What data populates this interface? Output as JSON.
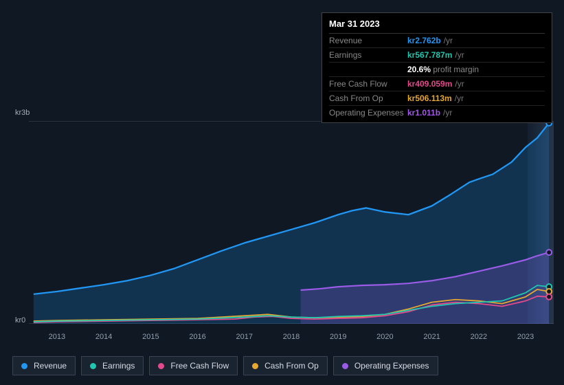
{
  "background_color": "#0f1823",
  "tooltip": {
    "title": "Mar 31 2023",
    "rows": [
      {
        "label": "Revenue",
        "value": "kr2.762b",
        "suffix": "/yr",
        "color": "#2196f3"
      },
      {
        "label": "Earnings",
        "value": "kr567.787m",
        "suffix": "/yr",
        "color": "#1fc7b0"
      },
      {
        "label": "Free Cash Flow",
        "value": "kr409.059m",
        "suffix": "/yr",
        "color": "#e24a8b"
      },
      {
        "label": "Cash From Op",
        "value": "kr506.113m",
        "suffix": "/yr",
        "color": "#e7a831"
      },
      {
        "label": "Operating Expenses",
        "value": "kr1.011b",
        "suffix": "/yr",
        "color": "#a258e8"
      }
    ],
    "sub_after_index": 1,
    "sub_value": "20.6%",
    "sub_label": "profit margin"
  },
  "y_axis": {
    "top_label": "kr3b",
    "bottom_label": "kr0",
    "min": 0,
    "max": 3.0
  },
  "x_axis": {
    "years": [
      2013,
      2014,
      2015,
      2016,
      2017,
      2018,
      2019,
      2020,
      2021,
      2022,
      2023
    ],
    "min": 2012.4,
    "max": 2023.6
  },
  "highlight_from_year": 2023.05,
  "chart_top_line_color": "#2a3340",
  "grid_color": "#1c2530",
  "series": [
    {
      "name": "Revenue",
      "color": "#2196f3",
      "stroke_width": 2.3,
      "fill_opacity": 0.22,
      "points": [
        [
          2012.5,
          0.44
        ],
        [
          2013,
          0.48
        ],
        [
          2013.5,
          0.53
        ],
        [
          2014,
          0.58
        ],
        [
          2014.5,
          0.64
        ],
        [
          2015,
          0.72
        ],
        [
          2015.5,
          0.82
        ],
        [
          2016,
          0.95
        ],
        [
          2016.5,
          1.08
        ],
        [
          2017,
          1.2
        ],
        [
          2017.5,
          1.3
        ],
        [
          2018,
          1.4
        ],
        [
          2018.5,
          1.5
        ],
        [
          2019,
          1.62
        ],
        [
          2019.3,
          1.68
        ],
        [
          2019.6,
          1.72
        ],
        [
          2020,
          1.66
        ],
        [
          2020.5,
          1.62
        ],
        [
          2021,
          1.75
        ],
        [
          2021.4,
          1.92
        ],
        [
          2021.8,
          2.1
        ],
        [
          2022,
          2.15
        ],
        [
          2022.3,
          2.22
        ],
        [
          2022.7,
          2.4
        ],
        [
          2023,
          2.62
        ],
        [
          2023.25,
          2.76
        ],
        [
          2023.5,
          2.98
        ]
      ]
    },
    {
      "name": "Operating Expenses",
      "color": "#9a5ce6",
      "stroke_width": 2.2,
      "fill_opacity": 0.22,
      "start_year": 2018.2,
      "points": [
        [
          2018.2,
          0.5
        ],
        [
          2018.6,
          0.52
        ],
        [
          2019,
          0.55
        ],
        [
          2019.5,
          0.57
        ],
        [
          2020,
          0.58
        ],
        [
          2020.5,
          0.6
        ],
        [
          2021,
          0.64
        ],
        [
          2021.5,
          0.7
        ],
        [
          2022,
          0.78
        ],
        [
          2022.5,
          0.86
        ],
        [
          2023,
          0.95
        ],
        [
          2023.25,
          1.01
        ],
        [
          2023.5,
          1.06
        ]
      ]
    },
    {
      "name": "Free Cash Flow",
      "color": "#e24a8b",
      "stroke_width": 1.8,
      "fill_opacity": 0.0,
      "points": [
        [
          2012.5,
          0.02
        ],
        [
          2013,
          0.03
        ],
        [
          2014,
          0.04
        ],
        [
          2015,
          0.05
        ],
        [
          2016,
          0.06
        ],
        [
          2016.8,
          0.07
        ],
        [
          2017.2,
          0.1
        ],
        [
          2017.6,
          0.11
        ],
        [
          2018,
          0.08
        ],
        [
          2018.5,
          0.07
        ],
        [
          2019,
          0.08
        ],
        [
          2019.5,
          0.09
        ],
        [
          2020,
          0.12
        ],
        [
          2020.5,
          0.18
        ],
        [
          2021,
          0.28
        ],
        [
          2021.5,
          0.32
        ],
        [
          2022,
          0.3
        ],
        [
          2022.5,
          0.26
        ],
        [
          2023,
          0.34
        ],
        [
          2023.25,
          0.41
        ],
        [
          2023.5,
          0.4
        ]
      ]
    },
    {
      "name": "Cash From Op",
      "color": "#e7a831",
      "stroke_width": 1.8,
      "fill_opacity": 0.0,
      "points": [
        [
          2012.5,
          0.04
        ],
        [
          2013,
          0.05
        ],
        [
          2014,
          0.06
        ],
        [
          2015,
          0.07
        ],
        [
          2016,
          0.08
        ],
        [
          2017,
          0.12
        ],
        [
          2017.5,
          0.14
        ],
        [
          2018,
          0.1
        ],
        [
          2018.5,
          0.09
        ],
        [
          2019,
          0.1
        ],
        [
          2019.5,
          0.11
        ],
        [
          2020,
          0.14
        ],
        [
          2020.5,
          0.22
        ],
        [
          2021,
          0.32
        ],
        [
          2021.5,
          0.36
        ],
        [
          2022,
          0.34
        ],
        [
          2022.5,
          0.3
        ],
        [
          2023,
          0.4
        ],
        [
          2023.25,
          0.51
        ],
        [
          2023.5,
          0.48
        ]
      ]
    },
    {
      "name": "Earnings",
      "color": "#1fc7b0",
      "stroke_width": 1.8,
      "fill_opacity": 0.0,
      "points": [
        [
          2012.5,
          0.03
        ],
        [
          2013,
          0.04
        ],
        [
          2014,
          0.05
        ],
        [
          2015,
          0.06
        ],
        [
          2016,
          0.07
        ],
        [
          2017,
          0.1
        ],
        [
          2017.5,
          0.12
        ],
        [
          2018,
          0.1
        ],
        [
          2018.5,
          0.09
        ],
        [
          2019,
          0.11
        ],
        [
          2019.5,
          0.12
        ],
        [
          2020,
          0.14
        ],
        [
          2020.5,
          0.2
        ],
        [
          2021,
          0.26
        ],
        [
          2021.5,
          0.3
        ],
        [
          2022,
          0.32
        ],
        [
          2022.5,
          0.34
        ],
        [
          2023,
          0.46
        ],
        [
          2023.25,
          0.57
        ],
        [
          2023.5,
          0.55
        ]
      ]
    }
  ],
  "end_markers": [
    {
      "color": "#2196f3",
      "year": 2023.5,
      "value": 2.98
    },
    {
      "color": "#9a5ce6",
      "year": 2023.5,
      "value": 1.06
    },
    {
      "color": "#1fc7b0",
      "year": 2023.5,
      "value": 0.55
    },
    {
      "color": "#e7a831",
      "year": 2023.5,
      "value": 0.48
    },
    {
      "color": "#e24a8b",
      "year": 2023.5,
      "value": 0.4
    }
  ],
  "legend": [
    {
      "label": "Revenue",
      "color": "#2196f3"
    },
    {
      "label": "Earnings",
      "color": "#1fc7b0"
    },
    {
      "label": "Free Cash Flow",
      "color": "#e24a8b"
    },
    {
      "label": "Cash From Op",
      "color": "#e7a831"
    },
    {
      "label": "Operating Expenses",
      "color": "#9a5ce6"
    }
  ]
}
